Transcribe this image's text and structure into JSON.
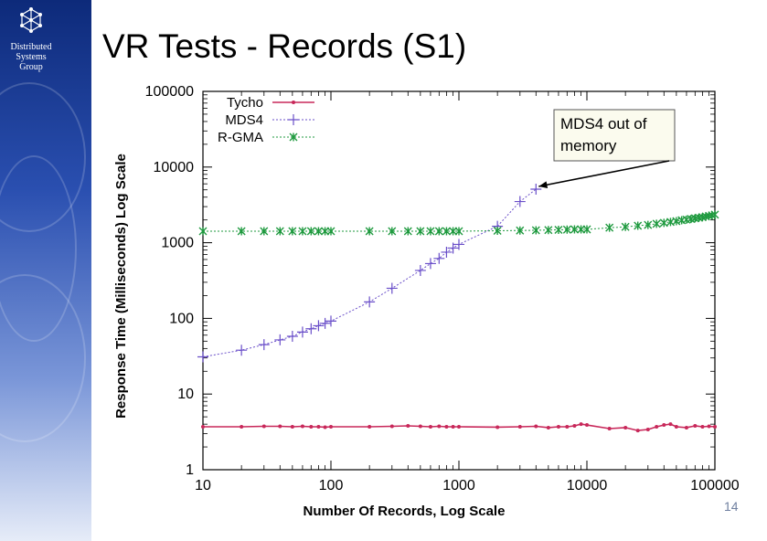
{
  "brand": {
    "line1": "Distributed",
    "line2": "Systems",
    "line3": "Group"
  },
  "slide": {
    "title": "VR Tests - Records (S1)",
    "number": "14"
  },
  "colors": {
    "tycho": "#c8285a",
    "mds4": "#6a4fc9",
    "rgma": "#1f9a3f",
    "annotation_bg": "#fbfbee"
  },
  "chart_data": {
    "type": "line",
    "xscale": "log",
    "yscale": "log",
    "xlim": [
      10,
      100000
    ],
    "ylim": [
      1,
      100000
    ],
    "xlabel": "Number Of Records, Log Scale",
    "ylabel": "Response Time (Milliseconds) Log Scale",
    "xticks": [
      {
        "v": 10,
        "label": "10"
      },
      {
        "v": 100,
        "label": "100"
      },
      {
        "v": 1000,
        "label": "1000"
      },
      {
        "v": 10000,
        "label": "10000"
      },
      {
        "v": 100000,
        "label": "100000"
      }
    ],
    "yticks": [
      {
        "v": 1,
        "label": "1"
      },
      {
        "v": 10,
        "label": "10"
      },
      {
        "v": 100,
        "label": "100"
      },
      {
        "v": 1000,
        "label": "1000"
      },
      {
        "v": 10000,
        "label": "10000"
      },
      {
        "v": 100000,
        "label": "100000"
      }
    ],
    "legend_position": "top-left",
    "series": [
      {
        "name": "Tycho",
        "marker": "dot",
        "color": "#c8285a",
        "x": [
          10,
          20,
          30,
          40,
          50,
          60,
          70,
          80,
          90,
          100,
          200,
          300,
          400,
          500,
          600,
          700,
          800,
          900,
          1000,
          2000,
          3000,
          4000,
          5000,
          6000,
          7000,
          8000,
          9000,
          10000,
          15000,
          20000,
          25000,
          30000,
          35000,
          40000,
          45000,
          50000,
          60000,
          70000,
          80000,
          90000,
          100000
        ],
        "y": [
          3.7,
          3.7,
          3.75,
          3.75,
          3.7,
          3.75,
          3.7,
          3.7,
          3.65,
          3.7,
          3.7,
          3.75,
          3.8,
          3.75,
          3.7,
          3.75,
          3.7,
          3.7,
          3.7,
          3.65,
          3.7,
          3.75,
          3.6,
          3.7,
          3.7,
          3.8,
          4.0,
          3.9,
          3.5,
          3.6,
          3.3,
          3.4,
          3.7,
          3.9,
          4.0,
          3.7,
          3.6,
          3.8,
          3.7,
          3.75,
          3.7
        ]
      },
      {
        "name": "MDS4",
        "marker": "plus",
        "color": "#6a4fc9",
        "x": [
          10,
          20,
          30,
          40,
          50,
          60,
          70,
          80,
          90,
          100,
          200,
          300,
          500,
          600,
          700,
          800,
          900,
          1000,
          2000,
          3000,
          4000
        ],
        "y": [
          31,
          38,
          45,
          52,
          58,
          66,
          73,
          80,
          86,
          92,
          165,
          250,
          430,
          530,
          620,
          750,
          850,
          950,
          1650,
          3500,
          5100
        ]
      },
      {
        "name": "R-GMA",
        "marker": "star",
        "color": "#1f9a3f",
        "x": [
          10,
          20,
          30,
          40,
          50,
          60,
          70,
          80,
          90,
          100,
          200,
          300,
          400,
          500,
          600,
          700,
          800,
          900,
          1000,
          2000,
          3000,
          4000,
          5000,
          6000,
          7000,
          8000,
          9000,
          10000,
          15000,
          20000,
          25000,
          30000,
          35000,
          40000,
          45000,
          50000,
          55000,
          60000,
          65000,
          70000,
          75000,
          80000,
          85000,
          90000,
          95000,
          100000
        ],
        "y": [
          1420,
          1420,
          1420,
          1420,
          1420,
          1420,
          1420,
          1420,
          1420,
          1420,
          1420,
          1420,
          1420,
          1420,
          1420,
          1420,
          1420,
          1420,
          1420,
          1440,
          1450,
          1460,
          1470,
          1480,
          1490,
          1500,
          1500,
          1500,
          1580,
          1620,
          1680,
          1720,
          1780,
          1830,
          1880,
          1930,
          1980,
          2020,
          2060,
          2100,
          2140,
          2180,
          2220,
          2260,
          2300,
          2350
        ]
      }
    ],
    "annotation": {
      "line1": "MDS4 out of",
      "line2": "memory",
      "points_to": {
        "x": 4000,
        "y": 5100
      }
    }
  }
}
